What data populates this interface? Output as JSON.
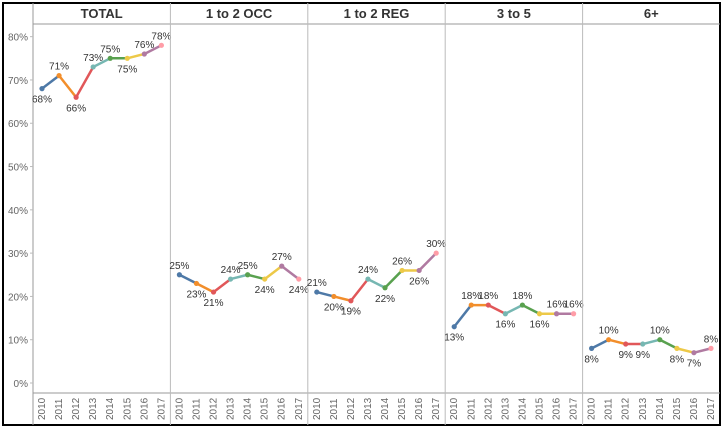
{
  "chart_data": {
    "type": "line",
    "title": "",
    "xlabel": "",
    "ylabel": "",
    "ylim": [
      0,
      82
    ],
    "y_ticks": [
      "0%",
      "10%",
      "20%",
      "30%",
      "40%",
      "50%",
      "60%",
      "70%",
      "80%"
    ],
    "y_tick_values": [
      0,
      10,
      20,
      30,
      40,
      50,
      60,
      70,
      80
    ],
    "x": [
      "2010",
      "2011",
      "2012",
      "2013",
      "2014",
      "2015",
      "2016",
      "2017"
    ],
    "grid": false,
    "segment_colors": [
      "#4e79a7",
      "#f28e2b",
      "#e15759",
      "#76b7b2",
      "#59a14f",
      "#edc948",
      "#b07aa1",
      "#ff9da7"
    ],
    "panels": [
      {
        "title": "TOTAL",
        "values": [
          68,
          71,
          66,
          73,
          75,
          75,
          76,
          78
        ],
        "labels": [
          "68%",
          "71%",
          "66%",
          "73%",
          "75%",
          "75%",
          "76%",
          "78%"
        ]
      },
      {
        "title": "1 to 2 OCC",
        "values": [
          25,
          23,
          21,
          24,
          25,
          24,
          27,
          24
        ],
        "labels": [
          "25%",
          "23%",
          "21%",
          "24%",
          "25%",
          "24%",
          "27%",
          "24%"
        ]
      },
      {
        "title": "1 to 2 REG",
        "values": [
          21,
          20,
          19,
          24,
          22,
          26,
          26,
          30
        ],
        "labels": [
          "21%",
          "20%",
          "19%",
          "24%",
          "22%",
          "26%",
          "26%",
          "30%"
        ]
      },
      {
        "title": "3 to 5",
        "values": [
          13,
          18,
          18,
          16,
          18,
          16,
          16,
          16
        ],
        "labels": [
          "13%",
          "18%",
          "18%",
          "16%",
          "18%",
          "16%",
          "16%",
          "16%"
        ]
      },
      {
        "title": "6+",
        "values": [
          8,
          10,
          9,
          9,
          10,
          8,
          7,
          8
        ],
        "labels": [
          "8%",
          "10%",
          "9%",
          "9%",
          "10%",
          "8%",
          "7%",
          "8%"
        ]
      }
    ]
  }
}
